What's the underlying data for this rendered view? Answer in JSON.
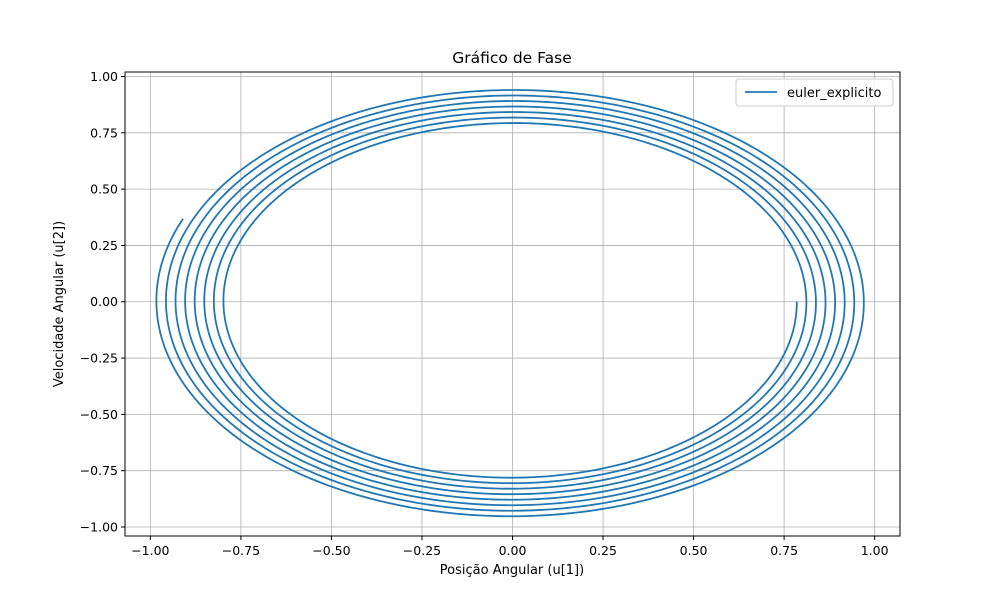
{
  "chart_data": {
    "type": "line",
    "title": "Gráfico de Fase",
    "xlabel": "Posição Angular (u[1])",
    "ylabel": "Velocidade Angular (u[2])",
    "xlim": [
      -1.07,
      1.07
    ],
    "ylim": [
      -1.04,
      1.02
    ],
    "xticks": [
      -1.0,
      -0.75,
      -0.5,
      -0.25,
      0.0,
      0.25,
      0.5,
      0.75,
      1.0
    ],
    "xtick_labels": [
      "−1.00",
      "−0.75",
      "−0.50",
      "−0.25",
      "0.00",
      "0.25",
      "0.50",
      "0.75",
      "1.00"
    ],
    "yticks": [
      -1.0,
      -0.75,
      -0.5,
      -0.25,
      0.0,
      0.25,
      0.5,
      0.75,
      1.0
    ],
    "ytick_labels": [
      "−1.00",
      "−0.75",
      "−0.50",
      "−0.25",
      "0.00",
      "0.25",
      "0.50",
      "0.75",
      "1.00"
    ],
    "grid": true,
    "legend_position": "top-right",
    "series": [
      {
        "name": "euler_explicito",
        "color": "#1f77b4",
        "start_point": [
          0.785,
          0.0
        ],
        "end_point": [
          -0.915,
          0.37
        ],
        "x_amplitude_start": 0.785,
        "x_amplitude_end": 0.985,
        "y_amplitude_start": 0.775,
        "y_amplitude_end": 0.96,
        "revolutions": 7.65,
        "direction": "clockwise"
      }
    ]
  }
}
